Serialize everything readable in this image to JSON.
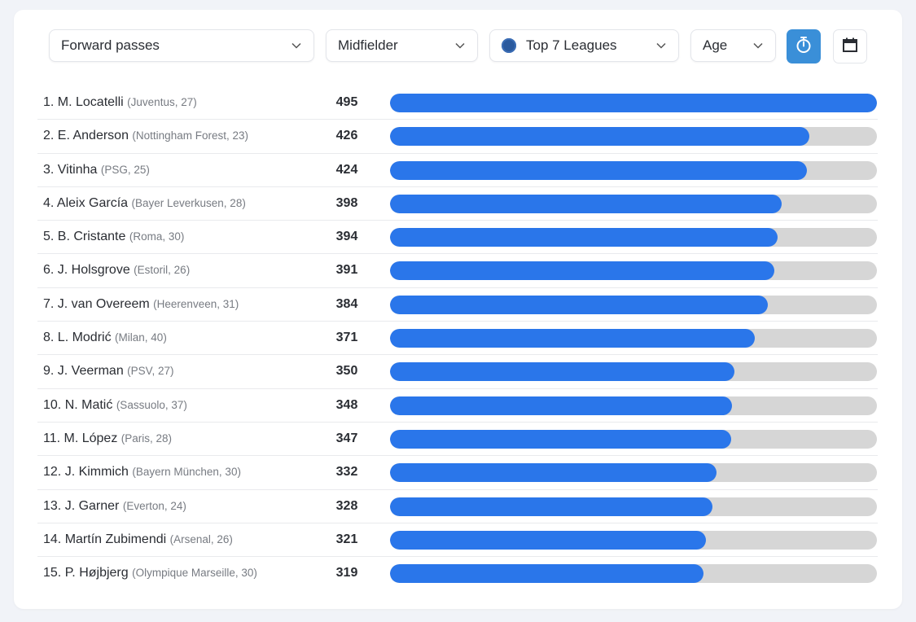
{
  "filters": {
    "metric": "Forward passes",
    "position": "Midfielder",
    "competition": "Top 7 Leagues",
    "sort": "Age"
  },
  "icons": {
    "stopwatch": "stopwatch-icon",
    "calendar": "calendar-icon",
    "chevron": "chevron-down-icon",
    "globe": "globe-icon"
  },
  "colors": {
    "bar": "#2a76ea",
    "track": "#d6d6d6",
    "active_button": "#3a8fd8"
  },
  "chart_data": {
    "type": "bar",
    "orientation": "horizontal",
    "title": "Forward passes",
    "xlim": [
      0,
      495
    ],
    "categories": [
      "1. M. Locatelli",
      "2. E. Anderson",
      "3. Vitinha",
      "4. Aleix García",
      "5. B. Cristante",
      "6. J. Holsgrove",
      "7. J. van Overeem",
      "8. L. Modrić",
      "9. J. Veerman",
      "10. N. Matić",
      "11. M. López",
      "12. J. Kimmich",
      "13. J. Garner",
      "14. Martín Zubimendi",
      "15. P. Højbjerg"
    ],
    "details": [
      "(Juventus, 27)",
      "(Nottingham Forest, 23)",
      "(PSG, 25)",
      "(Bayer Leverkusen, 28)",
      "(Roma, 30)",
      "(Estoril, 26)",
      "(Heerenveen, 31)",
      "(Milan, 40)",
      "(PSV, 27)",
      "(Sassuolo, 37)",
      "(Paris, 28)",
      "(Bayern München, 30)",
      "(Everton, 24)",
      "(Arsenal, 26)",
      "(Olympique Marseille, 30)"
    ],
    "values": [
      495,
      426,
      424,
      398,
      394,
      391,
      384,
      371,
      350,
      348,
      347,
      332,
      328,
      321,
      319
    ],
    "value_labels": [
      "495",
      "426",
      "424",
      "398",
      "394",
      "391",
      "384",
      "371",
      "350",
      "348",
      "347",
      "332",
      "328",
      "321",
      "319"
    ]
  }
}
